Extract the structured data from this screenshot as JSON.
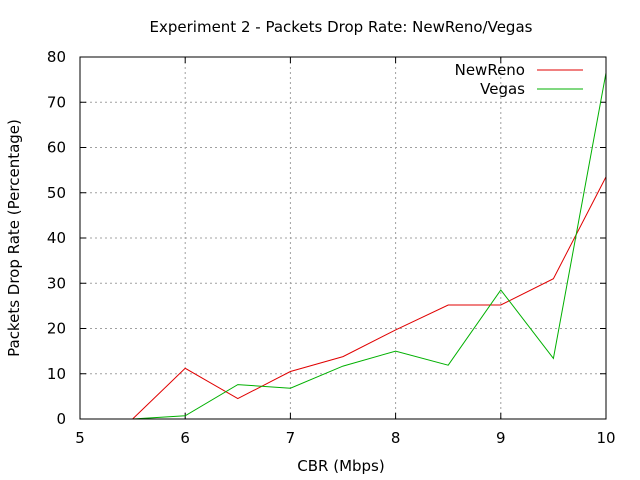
{
  "chart_data": {
    "type": "line",
    "title": "Experiment 2 - Packets Drop Rate: NewReno/Vegas",
    "xlabel": "CBR (Mbps)",
    "ylabel": "Packets Drop Rate (Percentage)",
    "xlim": [
      5,
      10
    ],
    "ylim": [
      0,
      80
    ],
    "xticks": [
      5,
      6,
      7,
      8,
      9,
      10
    ],
    "yticks": [
      0,
      10,
      20,
      30,
      40,
      50,
      60,
      70,
      80
    ],
    "grid": true,
    "legend_position": "top-right",
    "x": [
      5.5,
      6,
      6.5,
      7,
      7.5,
      8,
      8.5,
      9,
      9.5,
      10
    ],
    "series": [
      {
        "name": "NewReno",
        "color": "#e00000",
        "values": [
          0,
          11.2,
          4.5,
          10.5,
          13.8,
          19.7,
          25.2,
          25.2,
          31,
          53.5
        ]
      },
      {
        "name": "Vegas",
        "color": "#00b000",
        "values": [
          0,
          0.7,
          7.6,
          6.8,
          11.7,
          15,
          11.9,
          28.5,
          13.4,
          76.5
        ]
      }
    ]
  }
}
